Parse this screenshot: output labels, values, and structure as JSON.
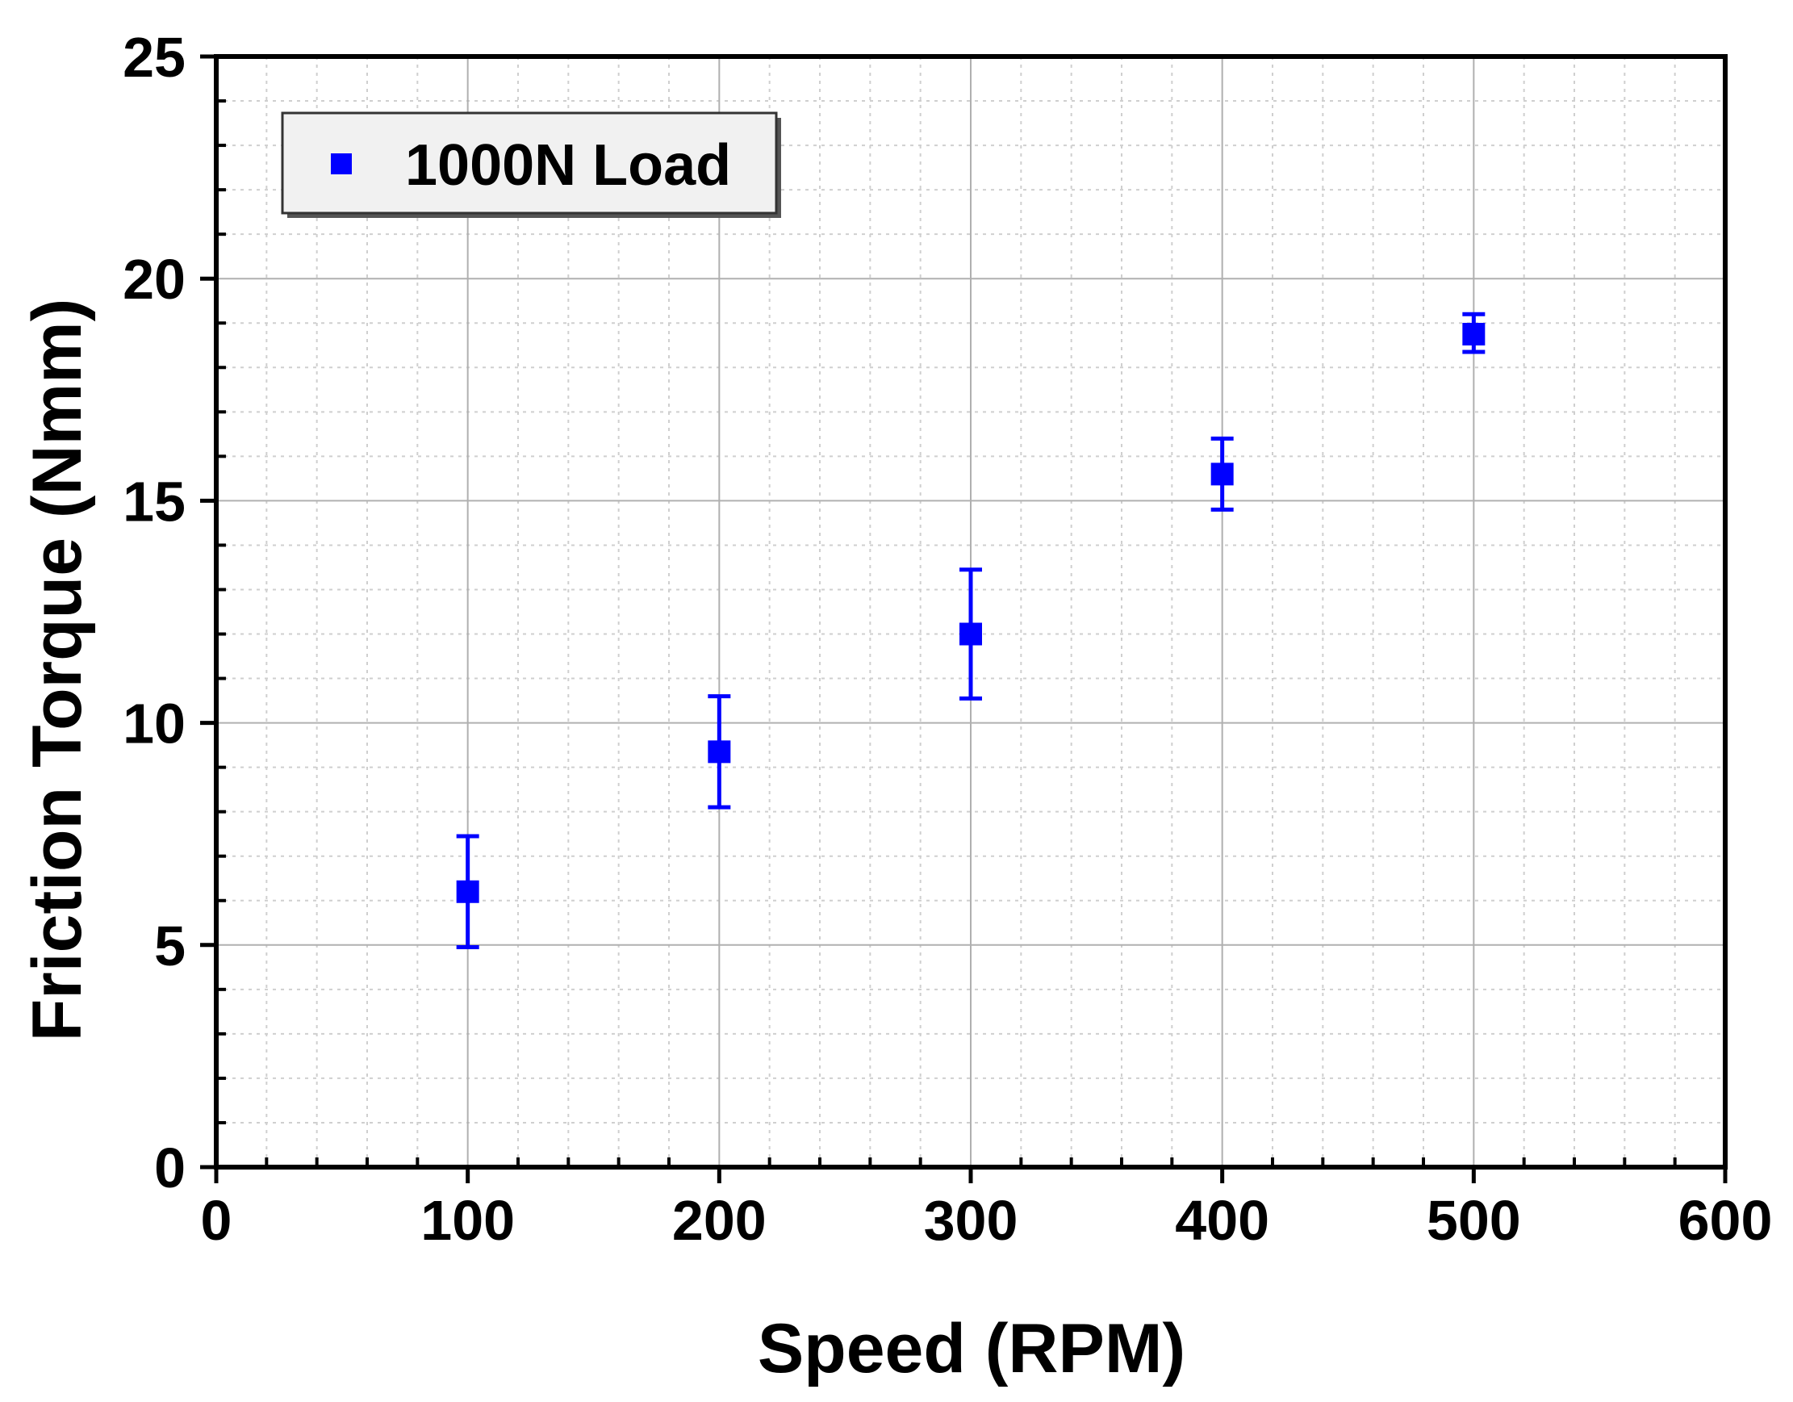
{
  "chart_data": {
    "type": "scatter",
    "xlabel": "Speed (RPM)",
    "ylabel": "Friction Torque (Nmm)",
    "xlim": [
      0,
      600
    ],
    "ylim": [
      0,
      25
    ],
    "x_ticks": [
      "0",
      "100",
      "200",
      "300",
      "400",
      "500",
      "600"
    ],
    "y_ticks": [
      "0",
      "5",
      "10",
      "15",
      "20",
      "25"
    ],
    "grid": true,
    "legend_position": "top-left",
    "series": [
      {
        "name": "1000N Load",
        "color": "#0000ff",
        "marker": "square",
        "points": [
          {
            "x": 100,
            "y": 6.2,
            "err_low": 4.95,
            "err_high": 7.45
          },
          {
            "x": 200,
            "y": 9.35,
            "err_low": 8.1,
            "err_high": 10.6
          },
          {
            "x": 300,
            "y": 12.0,
            "err_low": 10.55,
            "err_high": 13.45
          },
          {
            "x": 400,
            "y": 15.6,
            "err_low": 14.8,
            "err_high": 16.4
          },
          {
            "x": 500,
            "y": 18.75,
            "err_low": 18.35,
            "err_high": 19.2
          }
        ]
      }
    ]
  }
}
